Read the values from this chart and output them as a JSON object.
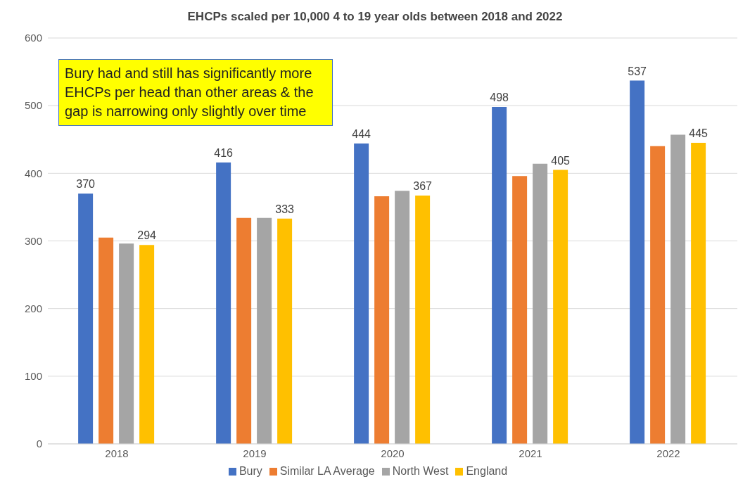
{
  "chart_data": {
    "type": "bar",
    "title": "EHCPs scaled per 10,000 4 to 19 year olds between 2018 and 2022",
    "categories": [
      "2018",
      "2019",
      "2020",
      "2021",
      "2022"
    ],
    "series": [
      {
        "name": "Bury",
        "color": "#4472c4",
        "values": [
          370,
          416,
          444,
          498,
          537
        ],
        "value_labels": [
          "370",
          "416",
          "444",
          "498",
          "537"
        ]
      },
      {
        "name": "Similar LA Average",
        "color": "#ed7d31",
        "values": [
          305,
          334,
          366,
          396,
          440
        ]
      },
      {
        "name": "North West",
        "color": "#a5a5a5",
        "values": [
          296,
          334,
          374,
          414,
          457
        ]
      },
      {
        "name": "England",
        "color": "#ffc000",
        "values": [
          294,
          333,
          367,
          405,
          445
        ],
        "value_labels": [
          "294",
          "333",
          "367",
          "405",
          "445"
        ]
      }
    ],
    "ylim": [
      0,
      600
    ],
    "yticks": [
      0,
      100,
      200,
      300,
      400,
      500,
      600
    ],
    "grid": "y",
    "legend": "bottom",
    "annotations": [
      "Bury had and still has significantly more EHCPs per head than other areas & the gap is narrowing only slightly over time"
    ]
  }
}
